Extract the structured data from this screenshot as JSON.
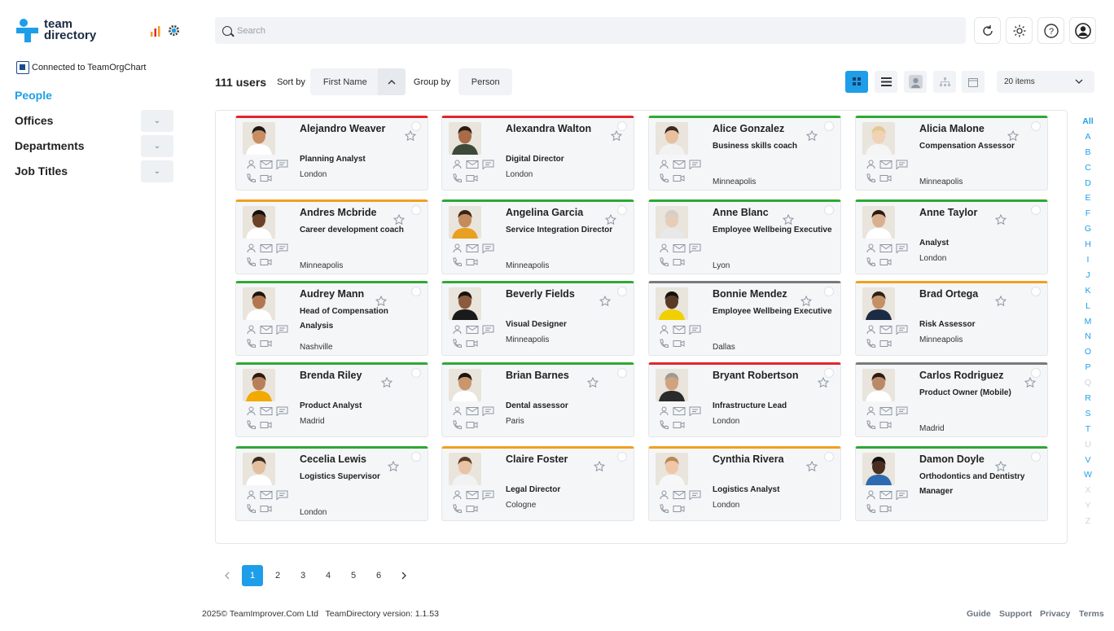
{
  "app": {
    "logo_line1": "team",
    "logo_line2": "directory",
    "connected": "Connected to TeamOrgChart"
  },
  "nav": [
    {
      "label": "People",
      "active": true
    },
    {
      "label": "Offices"
    },
    {
      "label": "Departments"
    },
    {
      "label": "Job Titles"
    }
  ],
  "search": {
    "placeholder": "Search"
  },
  "toolbar": {
    "users_count": "111 users",
    "sort_by_label": "Sort by",
    "sort_value": "First Name",
    "group_by_label": "Group by",
    "group_value": "Person",
    "items_per_page": "20 items"
  },
  "accent": "#1e9ee8",
  "cards": [
    {
      "name": "Alejandro Weaver",
      "title": "Planning Analyst",
      "location": "London",
      "status": "#e0262d"
    },
    {
      "name": "Alexandra Walton",
      "title": "Digital Director",
      "location": "London",
      "status": "#e0262d"
    },
    {
      "name": "Alice Gonzalez",
      "title": "Business skills coach",
      "location": "Minneapolis",
      "status": "#2ea836"
    },
    {
      "name": "Alicia Malone",
      "title": "Compensation Assessor",
      "location": "Minneapolis",
      "status": "#2ea836"
    },
    {
      "name": "Andres Mcbride",
      "title": "Career development coach",
      "location": "Minneapolis",
      "status": "#f0a020"
    },
    {
      "name": "Angelina Garcia",
      "title": "Service Integration Director",
      "location": "Minneapolis",
      "status": "#2ea836"
    },
    {
      "name": "Anne Blanc",
      "title": "Employee Wellbeing Executive",
      "location": "Lyon",
      "status": "#2ea836"
    },
    {
      "name": "Anne Taylor",
      "title": "Analyst",
      "location": "London",
      "status": "#2ea836"
    },
    {
      "name": "Audrey Mann",
      "title": "Head of Compensation Analysis",
      "location": "Nashville",
      "status": "#2ea836"
    },
    {
      "name": "Beverly Fields",
      "title": "Visual Designer",
      "location": "Minneapolis",
      "status": "#2ea836"
    },
    {
      "name": "Bonnie Mendez",
      "title": "Employee Wellbeing Executive",
      "location": "Dallas",
      "status": "#7a7a7a"
    },
    {
      "name": "Brad Ortega",
      "title": "Risk Assessor",
      "location": "Minneapolis",
      "status": "#f0a020"
    },
    {
      "name": "Brenda Riley",
      "title": "Product Analyst",
      "location": "Madrid",
      "status": "#2ea836"
    },
    {
      "name": "Brian Barnes",
      "title": "Dental assessor",
      "location": "Paris",
      "status": "#2ea836"
    },
    {
      "name": "Bryant Robertson",
      "title": "Infrastructure Lead",
      "location": "London",
      "status": "#e0262d"
    },
    {
      "name": "Carlos Rodriguez",
      "title": "Product Owner (Mobile)",
      "location": "Madrid",
      "status": "#7a7a7a"
    },
    {
      "name": "Cecelia Lewis",
      "title": "Logistics Supervisor",
      "location": "London",
      "status": "#2ea836"
    },
    {
      "name": "Claire Foster",
      "title": "Legal Director",
      "location": "Cologne",
      "status": "#f0a020"
    },
    {
      "name": "Cynthia Rivera",
      "title": "Logistics Analyst",
      "location": "London",
      "status": "#f0a020"
    },
    {
      "name": "Damon Doyle",
      "title": "Orthodontics and Dentistry Manager",
      "location": "",
      "status": "#2ea836"
    }
  ],
  "alphabet": [
    "All",
    "A",
    "B",
    "C",
    "D",
    "E",
    "F",
    "G",
    "H",
    "I",
    "J",
    "K",
    "L",
    "M",
    "N",
    "O",
    "P",
    "Q",
    "R",
    "S",
    "T",
    "U",
    "V",
    "W",
    "X",
    "Y",
    "Z"
  ],
  "alphabet_disabled": [
    "Q",
    "U",
    "X",
    "Y",
    "Z"
  ],
  "pagination": {
    "pages": [
      "1",
      "2",
      "3",
      "4",
      "5",
      "6"
    ],
    "current": "1"
  },
  "footer": {
    "copyright": "2025© TeamImprover.Com Ltd",
    "version": "TeamDirectory version: 1.1.53",
    "links": [
      "Guide",
      "Support",
      "Privacy",
      "Terms"
    ]
  }
}
